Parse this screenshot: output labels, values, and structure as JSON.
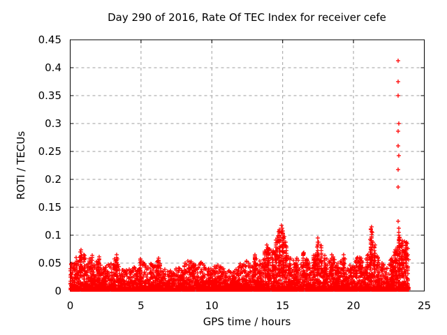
{
  "chart_data": {
    "type": "scatter",
    "title": "Day 290 of 2016, Rate Of TEC Index for receiver cefe",
    "xlabel": "GPS time / hours",
    "ylabel": "ROTI / TECUs",
    "xlim": [
      0,
      25
    ],
    "ylim": [
      0,
      0.45
    ],
    "xticks": {
      "values": [
        0,
        5,
        10,
        15,
        20,
        25
      ],
      "labels": [
        "0",
        "5",
        "10",
        "15",
        "20",
        "25"
      ]
    },
    "yticks": {
      "values": [
        0,
        0.05,
        0.1,
        0.15,
        0.2,
        0.25,
        0.3,
        0.35,
        0.4,
        0.45
      ],
      "labels": [
        "0",
        "0.05",
        "0.1",
        "0.15",
        "0.2",
        "0.25",
        "0.3",
        "0.35",
        "0.4",
        "0.45"
      ]
    },
    "grid": true,
    "legend": null,
    "marker": "plus",
    "marker_size_px": 7,
    "colors": {
      "marker": "#ff0000",
      "grid": "#9e9e9e",
      "axis": "#000000",
      "text": "#000000",
      "background": "#ffffff"
    },
    "x_data_range": [
      0,
      23.88
    ],
    "band_floor": 0.002,
    "envelope_note": "per-0.25h local maximum of the dense noise band (ROTI TECUs)",
    "envelope": [
      [
        0.0,
        0.05
      ],
      [
        0.25,
        0.055
      ],
      [
        0.5,
        0.06
      ],
      [
        0.75,
        0.074
      ],
      [
        1.0,
        0.065
      ],
      [
        1.25,
        0.052
      ],
      [
        1.5,
        0.068
      ],
      [
        1.75,
        0.052
      ],
      [
        2.0,
        0.06
      ],
      [
        2.25,
        0.048
      ],
      [
        2.5,
        0.044
      ],
      [
        2.75,
        0.058
      ],
      [
        3.0,
        0.05
      ],
      [
        3.25,
        0.065
      ],
      [
        3.5,
        0.056
      ],
      [
        3.75,
        0.042
      ],
      [
        4.0,
        0.038
      ],
      [
        4.25,
        0.04
      ],
      [
        4.5,
        0.045
      ],
      [
        4.75,
        0.04
      ],
      [
        5.0,
        0.06
      ],
      [
        5.25,
        0.05
      ],
      [
        5.5,
        0.058
      ],
      [
        5.75,
        0.048
      ],
      [
        6.0,
        0.045
      ],
      [
        6.25,
        0.062
      ],
      [
        6.5,
        0.042
      ],
      [
        6.75,
        0.038
      ],
      [
        7.0,
        0.035
      ],
      [
        7.25,
        0.038
      ],
      [
        7.5,
        0.042
      ],
      [
        7.75,
        0.046
      ],
      [
        8.0,
        0.05
      ],
      [
        8.25,
        0.056
      ],
      [
        8.5,
        0.058
      ],
      [
        8.75,
        0.05
      ],
      [
        9.0,
        0.052
      ],
      [
        9.25,
        0.056
      ],
      [
        9.5,
        0.046
      ],
      [
        9.75,
        0.042
      ],
      [
        10.0,
        0.046
      ],
      [
        10.25,
        0.05
      ],
      [
        10.5,
        0.048
      ],
      [
        10.75,
        0.044
      ],
      [
        11.0,
        0.04
      ],
      [
        11.25,
        0.036
      ],
      [
        11.5,
        0.036
      ],
      [
        11.75,
        0.042
      ],
      [
        12.0,
        0.055
      ],
      [
        12.25,
        0.05
      ],
      [
        12.5,
        0.058
      ],
      [
        12.75,
        0.052
      ],
      [
        13.0,
        0.065
      ],
      [
        13.25,
        0.055
      ],
      [
        13.5,
        0.052
      ],
      [
        13.75,
        0.075
      ],
      [
        14.0,
        0.08
      ],
      [
        14.25,
        0.072
      ],
      [
        14.5,
        0.095
      ],
      [
        14.75,
        0.11
      ],
      [
        15.0,
        0.112
      ],
      [
        15.25,
        0.088
      ],
      [
        15.5,
        0.062
      ],
      [
        15.75,
        0.055
      ],
      [
        16.0,
        0.06
      ],
      [
        16.25,
        0.055
      ],
      [
        16.5,
        0.07
      ],
      [
        16.75,
        0.06
      ],
      [
        17.0,
        0.052
      ],
      [
        17.25,
        0.065
      ],
      [
        17.5,
        0.09
      ],
      [
        17.75,
        0.082
      ],
      [
        18.0,
        0.065
      ],
      [
        18.25,
        0.055
      ],
      [
        18.5,
        0.066
      ],
      [
        18.75,
        0.05
      ],
      [
        19.0,
        0.05
      ],
      [
        19.25,
        0.065
      ],
      [
        19.5,
        0.055
      ],
      [
        19.75,
        0.046
      ],
      [
        20.0,
        0.044
      ],
      [
        20.25,
        0.06
      ],
      [
        20.5,
        0.062
      ],
      [
        20.75,
        0.05
      ],
      [
        21.0,
        0.065
      ],
      [
        21.25,
        0.112
      ],
      [
        21.5,
        0.085
      ],
      [
        21.75,
        0.062
      ],
      [
        22.0,
        0.05
      ],
      [
        22.25,
        0.046
      ],
      [
        22.5,
        0.052
      ],
      [
        22.75,
        0.06
      ],
      [
        23.0,
        0.075
      ],
      [
        23.25,
        0.1
      ],
      [
        23.5,
        0.092
      ],
      [
        23.75,
        0.088
      ]
    ],
    "outliers_note": "isolated high ROTI points readable in the plot [hour, TECUs]",
    "outliers": [
      [
        23.17,
        0.412
      ],
      [
        23.17,
        0.375
      ],
      [
        23.17,
        0.35
      ],
      [
        23.18,
        0.3
      ],
      [
        23.17,
        0.286
      ],
      [
        23.17,
        0.26
      ],
      [
        23.18,
        0.243
      ],
      [
        23.17,
        0.218
      ],
      [
        23.17,
        0.186
      ],
      [
        23.16,
        0.125
      ],
      [
        23.2,
        0.112
      ],
      [
        23.21,
        0.105
      ],
      [
        23.19,
        0.1
      ],
      [
        23.23,
        0.096
      ],
      [
        23.22,
        0.09
      ],
      [
        21.3,
        0.115
      ],
      [
        21.31,
        0.105
      ],
      [
        21.29,
        0.098
      ],
      [
        21.3,
        0.09
      ],
      [
        21.32,
        0.082
      ],
      [
        21.28,
        0.075
      ],
      [
        14.93,
        0.118
      ],
      [
        14.97,
        0.112
      ],
      [
        14.9,
        0.106
      ],
      [
        15.0,
        0.102
      ],
      [
        14.86,
        0.096
      ],
      [
        15.05,
        0.094
      ],
      [
        17.49,
        0.095
      ],
      [
        17.52,
        0.088
      ],
      [
        13.9,
        0.082
      ]
    ]
  }
}
